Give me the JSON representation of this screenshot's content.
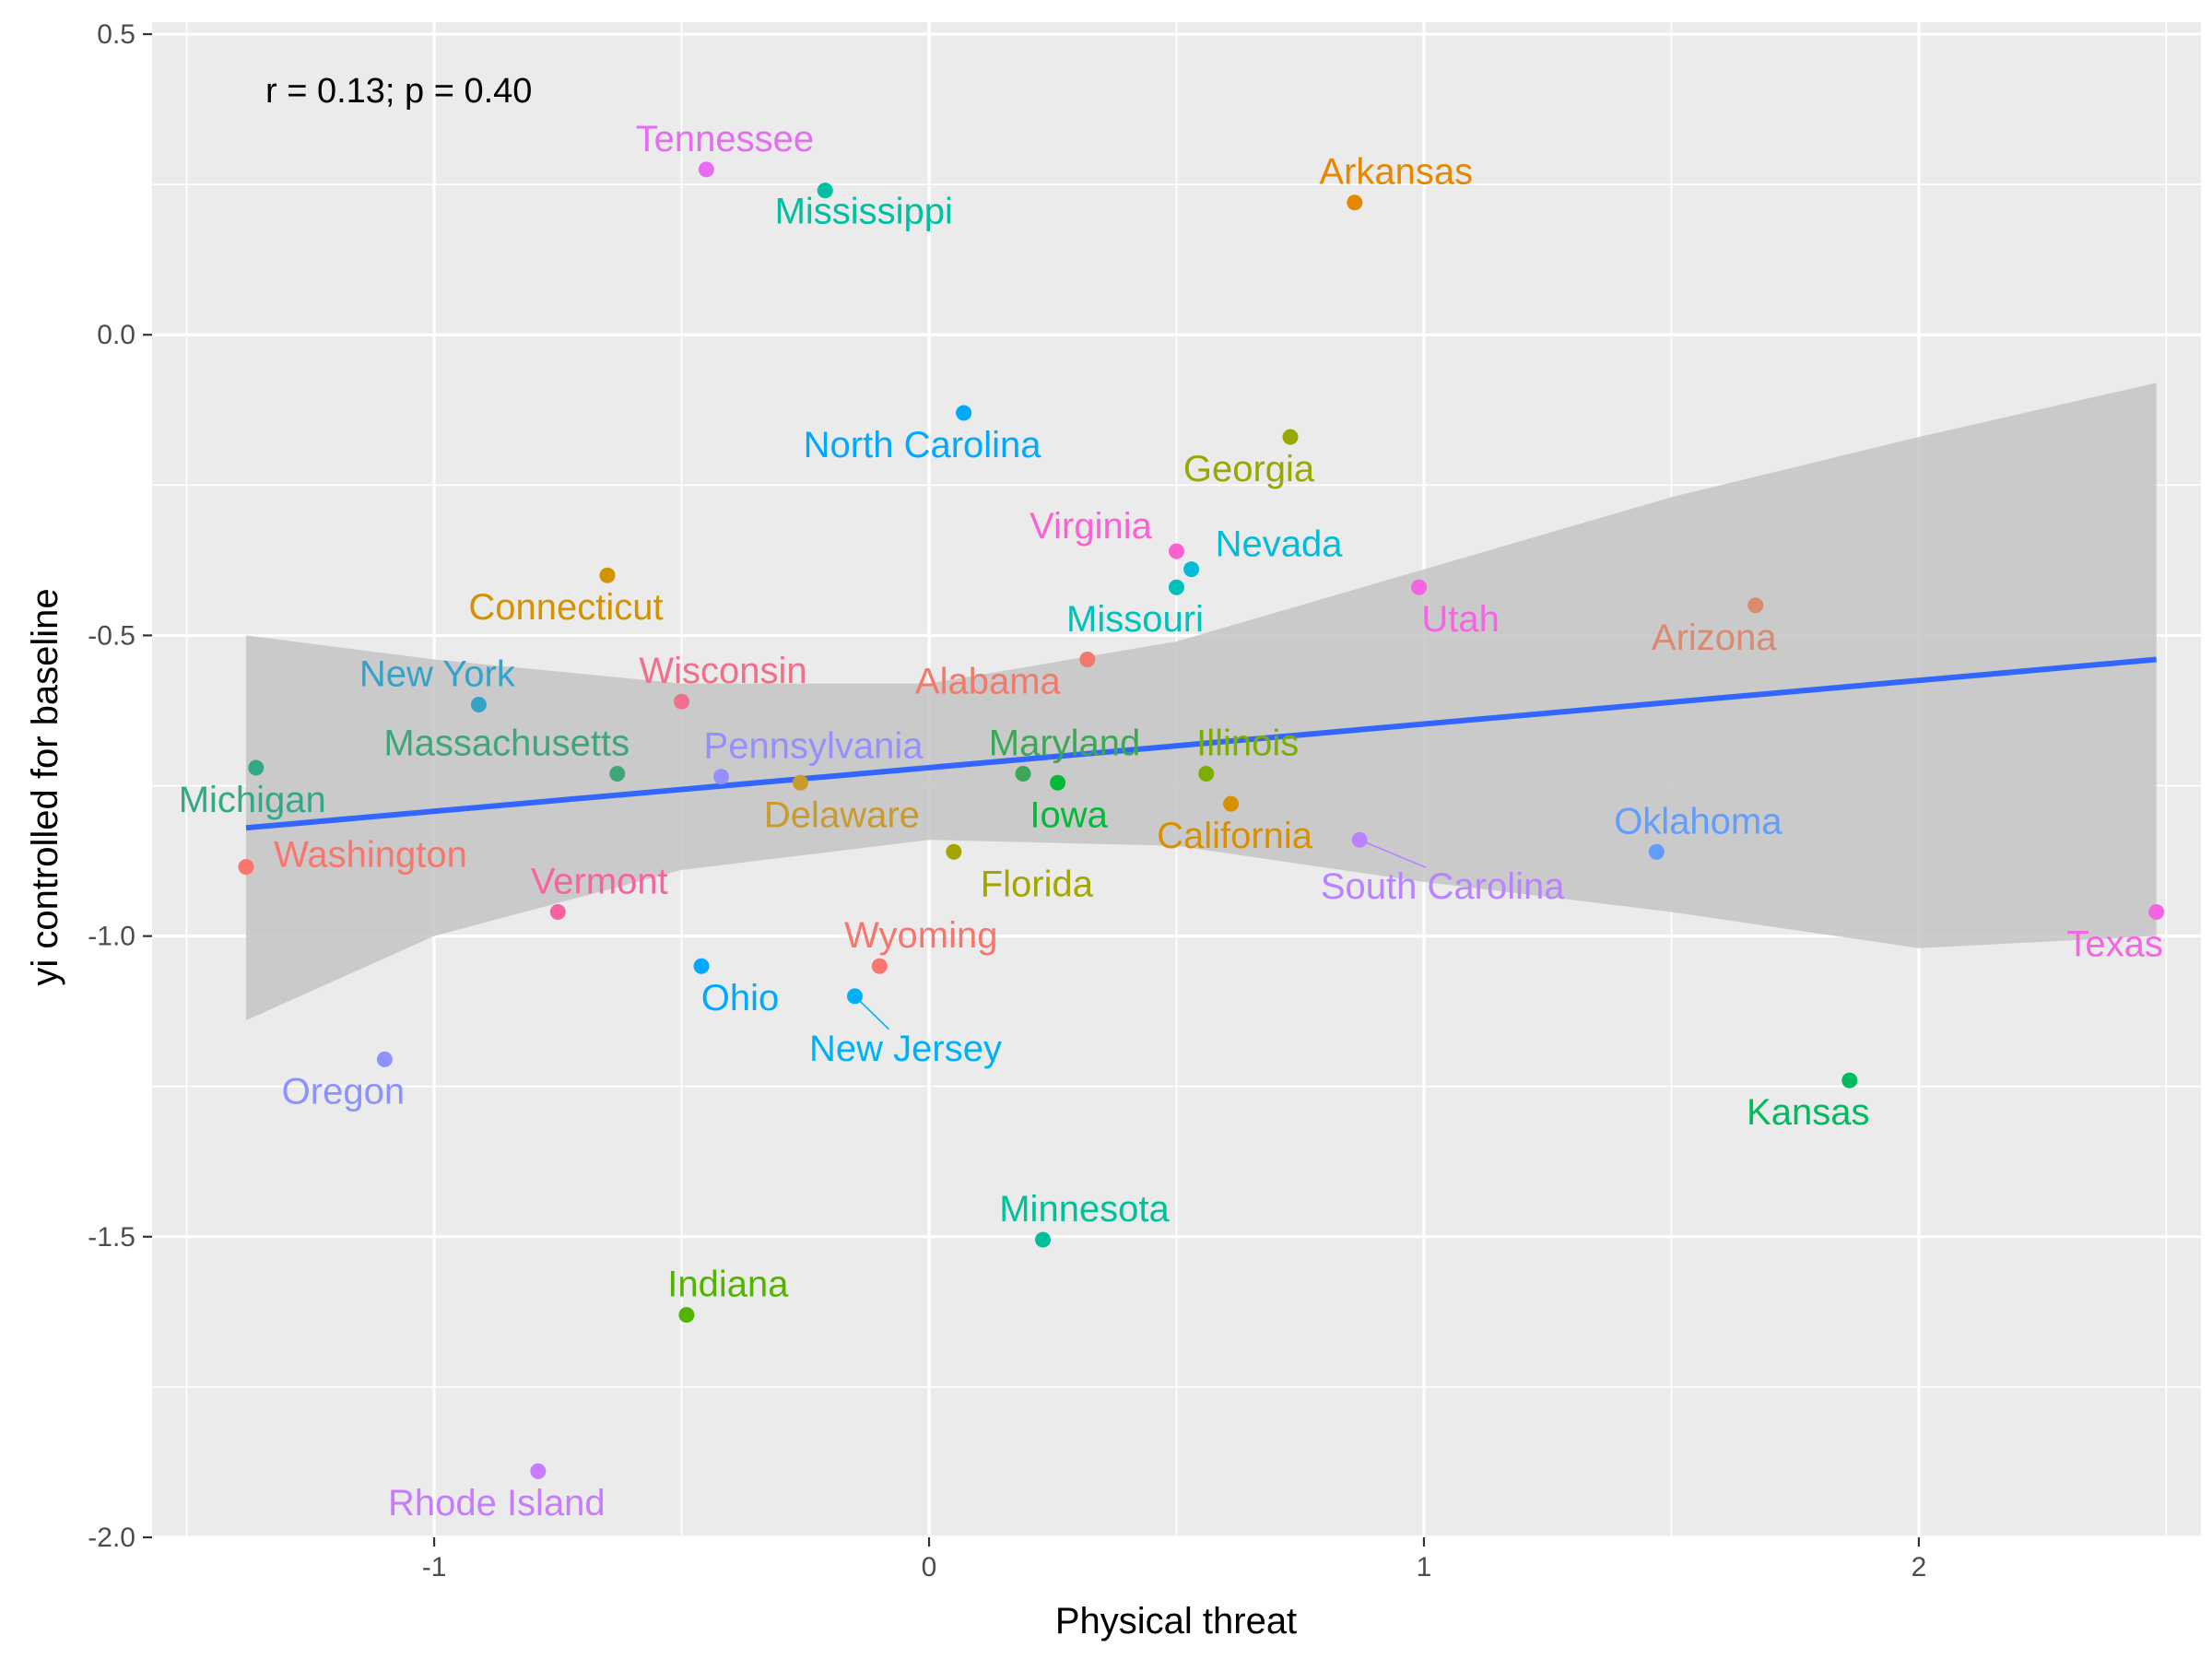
{
  "chart_data": {
    "type": "scatter",
    "title": "",
    "xlabel": "Physical threat",
    "ylabel": "yi controlled for baseline",
    "annotation": "r = 0.13; p = 0.40",
    "xlim": [
      -1.57,
      2.57
    ],
    "ylim": [
      -2.0,
      0.52
    ],
    "x_ticks": [
      -1,
      0,
      1,
      2
    ],
    "x_tick_labels": [
      "-1",
      "0",
      "1",
      "2"
    ],
    "y_ticks": [
      0.5,
      0.0,
      -0.5,
      -1.0,
      -1.5,
      -2.0
    ],
    "y_tick_labels": [
      "0.5",
      "0.0",
      "-0.5",
      "-1.0",
      "-1.5",
      "-2.0"
    ],
    "grid": true,
    "legend": "none",
    "panel_background": "#ebebeb",
    "grid_color": "#ffffff",
    "regression": {
      "type": "linear",
      "color": "#3366ff",
      "x": [
        -1.38,
        2.48
      ],
      "y": [
        -0.82,
        -0.54
      ],
      "band_color": "#c4c4c4",
      "band": {
        "x": [
          -1.38,
          -1.0,
          -0.5,
          0.0,
          0.5,
          1.0,
          1.5,
          2.0,
          2.48
        ],
        "upper": [
          -0.5,
          -0.54,
          -0.58,
          -0.58,
          -0.51,
          -0.39,
          -0.27,
          -0.17,
          -0.08
        ],
        "lower": [
          -1.14,
          -1.0,
          -0.89,
          -0.84,
          -0.85,
          -0.91,
          -0.96,
          -1.02,
          -1.0
        ]
      }
    },
    "points": [
      {
        "name": "Tennessee",
        "x": -0.45,
        "y": 0.275,
        "color": "#e76bf3"
      },
      {
        "name": "Mississippi",
        "x": -0.21,
        "y": 0.24,
        "color": "#00bfa0"
      },
      {
        "name": "Arkansas",
        "x": 0.86,
        "y": 0.22,
        "color": "#e58700"
      },
      {
        "name": "North Carolina",
        "x": 0.07,
        "y": -0.13,
        "color": "#00a9ff"
      },
      {
        "name": "Georgia",
        "x": 0.73,
        "y": -0.17,
        "color": "#99a800"
      },
      {
        "name": "Virginia",
        "x": 0.5,
        "y": -0.36,
        "color": "#fd61d1"
      },
      {
        "name": "Nevada",
        "x": 0.53,
        "y": -0.39,
        "color": "#00bcd8"
      },
      {
        "name": "Connecticut",
        "x": -0.65,
        "y": -0.4,
        "color": "#d39200"
      },
      {
        "name": "Missouri",
        "x": 0.5,
        "y": -0.42,
        "color": "#00c0b8"
      },
      {
        "name": "Utah",
        "x": 0.99,
        "y": -0.42,
        "color": "#f564e3"
      },
      {
        "name": "Arizona",
        "x": 1.67,
        "y": -0.45,
        "color": "#d98a70"
      },
      {
        "name": "Alabama",
        "x": 0.32,
        "y": -0.54,
        "color": "#f07a6b"
      },
      {
        "name": "New York",
        "x": -0.91,
        "y": -0.615,
        "color": "#35a2c8"
      },
      {
        "name": "Wisconsin",
        "x": -0.5,
        "y": -0.61,
        "color": "#f06f8a"
      },
      {
        "name": "Michigan",
        "x": -1.36,
        "y": -0.72,
        "color": "#32a886"
      },
      {
        "name": "Massachusetts",
        "x": -0.63,
        "y": -0.73,
        "color": "#3ea67a"
      },
      {
        "name": "Pennsylvania",
        "x": -0.42,
        "y": -0.735,
        "color": "#9590ff"
      },
      {
        "name": "Maryland",
        "x": 0.19,
        "y": -0.73,
        "color": "#3aa857"
      },
      {
        "name": "Illinois",
        "x": 0.56,
        "y": -0.73,
        "color": "#7cae00"
      },
      {
        "name": "Iowa",
        "x": 0.26,
        "y": -0.745,
        "color": "#00ba38"
      },
      {
        "name": "Delaware",
        "x": -0.26,
        "y": -0.745,
        "color": "#c99a2e"
      },
      {
        "name": "California",
        "x": 0.61,
        "y": -0.78,
        "color": "#d89000"
      },
      {
        "name": "Washington",
        "x": -1.38,
        "y": -0.885,
        "color": "#f8766d"
      },
      {
        "name": "Florida",
        "x": 0.05,
        "y": -0.86,
        "color": "#a3a500"
      },
      {
        "name": "South Carolina",
        "x": 0.87,
        "y": -0.84,
        "color": "#b983ff"
      },
      {
        "name": "Oklahoma",
        "x": 1.47,
        "y": -0.86,
        "color": "#619cff"
      },
      {
        "name": "Vermont",
        "x": -0.75,
        "y": -0.96,
        "color": "#f763a0"
      },
      {
        "name": "Texas",
        "x": 2.48,
        "y": -0.96,
        "color": "#f564e3"
      },
      {
        "name": "Ohio",
        "x": -0.46,
        "y": -1.05,
        "color": "#00a9ff"
      },
      {
        "name": "Wyoming",
        "x": -0.1,
        "y": -1.05,
        "color": "#f8766d"
      },
      {
        "name": "New Jersey",
        "x": -0.15,
        "y": -1.1,
        "color": "#00b0f6"
      },
      {
        "name": "Oregon",
        "x": -1.1,
        "y": -1.205,
        "color": "#8c92ff"
      },
      {
        "name": "Kansas",
        "x": 1.86,
        "y": -1.24,
        "color": "#00ba60"
      },
      {
        "name": "Minnesota",
        "x": 0.23,
        "y": -1.505,
        "color": "#00c09a"
      },
      {
        "name": "Indiana",
        "x": -0.49,
        "y": -1.63,
        "color": "#53b400"
      },
      {
        "name": "Rhode Island",
        "x": -0.79,
        "y": -1.89,
        "color": "#c77cff"
      }
    ]
  }
}
